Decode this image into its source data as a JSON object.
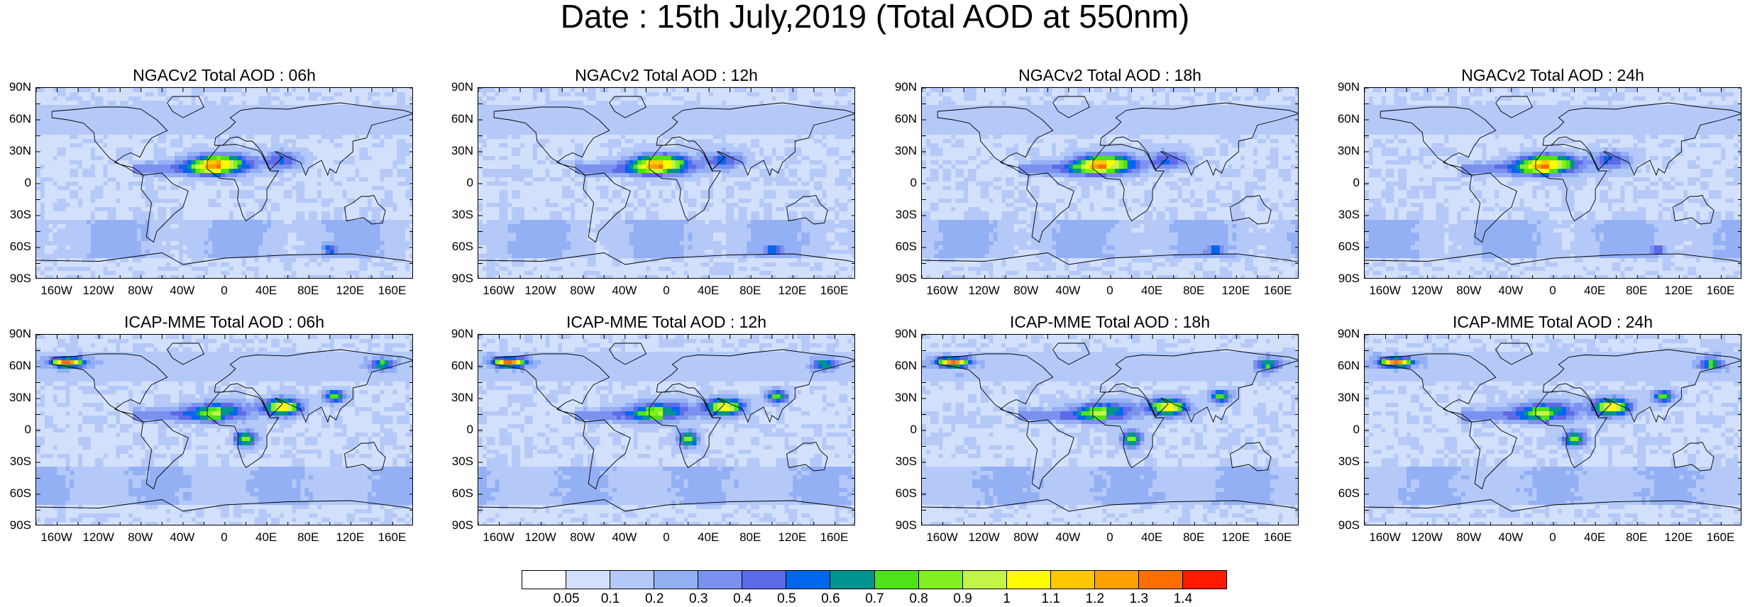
{
  "figure": {
    "title": "Date : 15th July,2019 (Total AOD at 550nm)",
    "lat_labels": [
      "90N",
      "60N",
      "30N",
      "0",
      "30S",
      "60S",
      "90S"
    ],
    "lon_labels": [
      "160W",
      "120W",
      "80W",
      "40W",
      "0",
      "40E",
      "80E",
      "120E",
      "160E"
    ]
  },
  "panels": [
    {
      "title": "NGACv2 Total AOD : 06h",
      "model": "NGACv2",
      "hour": "06h"
    },
    {
      "title": "NGACv2 Total AOD : 12h",
      "model": "NGACv2",
      "hour": "12h"
    },
    {
      "title": "NGACv2 Total AOD : 18h",
      "model": "NGACv2",
      "hour": "18h"
    },
    {
      "title": "NGACv2 Total AOD : 24h",
      "model": "NGACv2",
      "hour": "24h"
    },
    {
      "title": "ICAP-MME Total AOD : 06h",
      "model": "ICAP-MME",
      "hour": "06h"
    },
    {
      "title": "ICAP-MME Total AOD : 12h",
      "model": "ICAP-MME",
      "hour": "12h"
    },
    {
      "title": "ICAP-MME Total AOD : 18h",
      "model": "ICAP-MME",
      "hour": "18h"
    },
    {
      "title": "ICAP-MME Total AOD : 24h",
      "model": "ICAP-MME",
      "hour": "24h"
    }
  ],
  "colorbar": {
    "labels": [
      "0.05",
      "0.1",
      "0.2",
      "0.3",
      "0.4",
      "0.5",
      "0.6",
      "0.7",
      "0.8",
      "0.9",
      "1",
      "1.1",
      "1.2",
      "1.3",
      "1.4"
    ],
    "colors": [
      "#ffffff",
      "#d3e0fb",
      "#b4c9f8",
      "#94b0f5",
      "#7b91f0",
      "#5d6ae9",
      "#0066ee",
      "#00948e",
      "#4ee317",
      "#80f01e",
      "#c2f548",
      "#fffb00",
      "#ffc800",
      "#ff9f00",
      "#ff6f00",
      "#ff1a00"
    ]
  }
}
